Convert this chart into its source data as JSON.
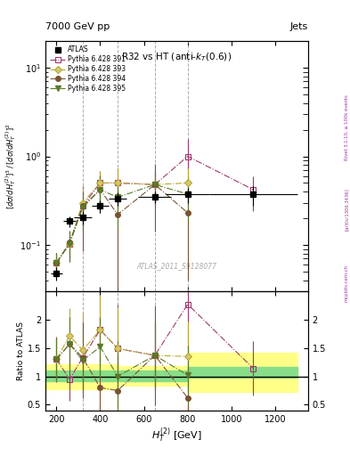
{
  "title_top": "7000 GeV pp",
  "title_top_right": "Jets",
  "title_main": "R32 vs HT (anti-$k_T$(0.6))",
  "watermark": "ATLAS_2011_S9128077",
  "rivet_text": "Rivet 3.1.10, ≥ 100k events",
  "arxiv_text": "[arXiv:1306.3436]",
  "mcplots_text": "mcplots.cern.ch",
  "xlabel": "$H_T^{(2)}$ [GeV]",
  "ylabel_main": "$[d\\sigma/dH_T^{(2)}]^3\\,/\\,[d\\sigma/dH_T^{(2)}]^2$",
  "ylabel_ratio": "Ratio to ATLAS",
  "xlim": [
    150,
    1350
  ],
  "ylim_main": [
    0.03,
    20
  ],
  "ylim_ratio": [
    0.4,
    2.5
  ],
  "atlas_x": [
    200,
    260,
    320,
    400,
    480,
    650,
    800,
    1100
  ],
  "atlas_y": [
    0.048,
    0.185,
    0.205,
    0.275,
    0.335,
    0.35,
    0.37,
    0.37
  ],
  "atlas_xerr": [
    25,
    30,
    40,
    40,
    40,
    75,
    100,
    200
  ],
  "atlas_yerr_lo": [
    0.008,
    0.025,
    0.035,
    0.045,
    0.055,
    0.055,
    0.07,
    0.09
  ],
  "atlas_yerr_hi": [
    0.008,
    0.025,
    0.035,
    0.045,
    0.055,
    0.055,
    0.07,
    0.09
  ],
  "p391_x": [
    200,
    260,
    320,
    400,
    480,
    650,
    800,
    1100
  ],
  "p391_y": [
    0.063,
    0.103,
    0.275,
    0.5,
    0.5,
    0.48,
    1.0,
    0.42
  ],
  "p391_yerr_lo": [
    0.018,
    0.038,
    0.19,
    0.19,
    0.24,
    0.34,
    0.58,
    0.18
  ],
  "p391_yerr_hi": [
    0.018,
    0.038,
    0.19,
    0.19,
    0.24,
    0.34,
    0.58,
    0.18
  ],
  "p393_x": [
    200,
    260,
    320,
    400,
    480,
    650,
    800
  ],
  "p393_y": [
    0.063,
    0.103,
    0.3,
    0.5,
    0.5,
    0.48,
    0.5
  ],
  "p393_yerr_lo": [
    0.018,
    0.038,
    0.14,
    0.19,
    0.24,
    0.19,
    0.24
  ],
  "p393_yerr_hi": [
    0.018,
    0.038,
    0.14,
    0.19,
    0.24,
    0.19,
    0.24
  ],
  "p394_x": [
    200,
    260,
    320,
    400,
    480,
    650,
    800
  ],
  "p394_y": [
    0.063,
    0.106,
    0.275,
    0.42,
    0.22,
    0.48,
    0.23
  ],
  "p394_yerr_lo": [
    0.018,
    0.038,
    0.13,
    0.19,
    0.19,
    0.21,
    0.19
  ],
  "p394_yerr_hi": [
    0.018,
    0.038,
    0.13,
    0.19,
    0.19,
    0.21,
    0.19
  ],
  "p395_x": [
    200,
    260,
    320,
    400,
    480,
    650,
    800
  ],
  "p395_y": [
    0.063,
    0.103,
    0.265,
    0.42,
    0.345,
    0.48,
    0.375
  ],
  "p395_yerr_lo": [
    0.018,
    0.038,
    0.12,
    0.17,
    0.19,
    0.19,
    0.19
  ],
  "p395_yerr_hi": [
    0.018,
    0.038,
    0.12,
    0.17,
    0.19,
    0.19,
    0.19
  ],
  "color_391": "#9b3a6e",
  "color_393": "#b8a830",
  "color_394": "#7a5230",
  "color_395": "#5a7a2a",
  "vline_x": [
    320,
    480,
    650,
    800
  ],
  "ratio_391_x": [
    200,
    260,
    320,
    400,
    480,
    650,
    800,
    1100
  ],
  "ratio_391_y": [
    1.3,
    0.95,
    1.33,
    1.82,
    1.49,
    1.37,
    2.27,
    1.14
  ],
  "ratio_391_yerr": [
    0.4,
    0.38,
    0.72,
    0.62,
    0.78,
    0.88,
    1.15,
    0.48
  ],
  "ratio_393_x": [
    200,
    260,
    320,
    400,
    480,
    650,
    800
  ],
  "ratio_393_y": [
    1.3,
    1.72,
    1.46,
    1.82,
    1.49,
    1.37,
    1.35
  ],
  "ratio_393_yerr": [
    0.38,
    0.48,
    0.68,
    0.62,
    0.72,
    0.58,
    0.62
  ],
  "ratio_394_x": [
    200,
    260,
    320,
    400,
    480,
    650,
    800
  ],
  "ratio_394_y": [
    1.3,
    1.57,
    1.33,
    0.8,
    0.75,
    1.37,
    0.62
  ],
  "ratio_394_yerr": [
    0.38,
    0.48,
    0.62,
    0.52,
    0.6,
    0.62,
    0.52
  ],
  "ratio_395_x": [
    200,
    260,
    320,
    400,
    480,
    650,
    800
  ],
  "ratio_395_y": [
    1.3,
    1.57,
    1.28,
    1.52,
    1.0,
    1.37,
    1.02
  ],
  "ratio_395_yerr": [
    0.38,
    0.48,
    0.6,
    0.52,
    0.62,
    0.58,
    0.52
  ],
  "band_x": [
    150,
    320,
    480,
    650,
    800,
    1300
  ],
  "band_yellow_lo": [
    0.78,
    0.78,
    0.84,
    0.84,
    0.72,
    0.72
  ],
  "band_yellow_hi": [
    1.22,
    1.22,
    1.18,
    1.18,
    1.42,
    1.42
  ],
  "band_green_lo": [
    0.92,
    0.92,
    0.92,
    0.92,
    0.98,
    0.98
  ],
  "band_green_hi": [
    1.1,
    1.1,
    1.1,
    1.1,
    1.16,
    1.16
  ]
}
